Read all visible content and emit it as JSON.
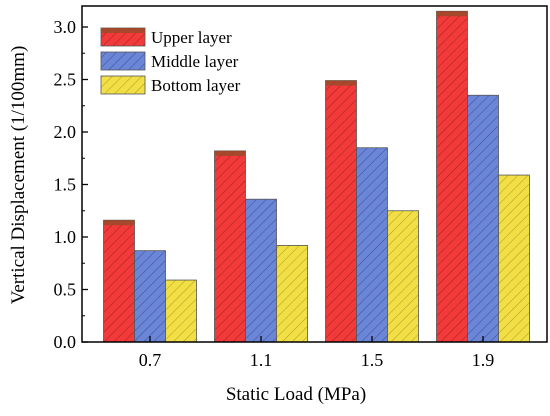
{
  "chart_data": {
    "type": "bar",
    "title": "",
    "xlabel": "Static Load (MPa)",
    "ylabel": "Vertical Displacement (1/100mm)",
    "categories": [
      "0.7",
      "1.1",
      "1.5",
      "1.9"
    ],
    "series": [
      {
        "name": "Upper layer",
        "values": [
          1.16,
          1.82,
          2.49,
          3.15
        ],
        "color": "#f23a3a",
        "hatch": "#8a1818",
        "cap": "#9a4a2a"
      },
      {
        "name": "Middle layer",
        "values": [
          0.87,
          1.36,
          1.85,
          2.35
        ],
        "color": "#6b86d6",
        "hatch": "#2b3f85",
        "cap": null
      },
      {
        "name": "Bottom layer",
        "values": [
          0.59,
          0.92,
          1.25,
          1.59
        ],
        "color": "#f2df46",
        "hatch": "#9a8a18",
        "cap": null
      }
    ],
    "ylim": [
      0,
      3.2
    ],
    "yticks": [
      "0.0",
      "0.5",
      "1.0",
      "1.5",
      "2.0",
      "2.5",
      "3.0"
    ],
    "legend_position": "top-left",
    "grid": false
  }
}
